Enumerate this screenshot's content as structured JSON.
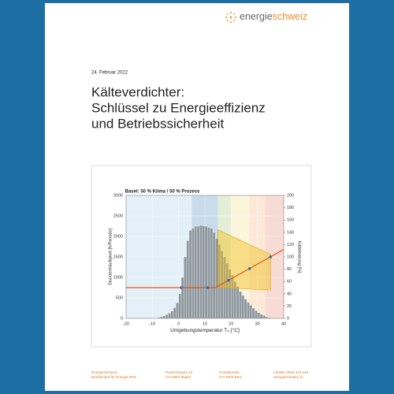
{
  "header": {
    "logo_a": "energie",
    "logo_b": "schweiz"
  },
  "document": {
    "date": "24. Februar 2022",
    "title_lines": [
      "Kälteverdichter:",
      "Schlüssel zu Energieeffizienz",
      "und Betriebssicherheit"
    ]
  },
  "chart_data": {
    "type": "histogram",
    "title": "Basel: 50 % Klima / 50 % Prozess",
    "xlabel": [
      "Umgebungstemperatur T",
      "A",
      " [°C]"
    ],
    "ylabel": "Stundenhäufigkeit [h/Periode]",
    "y2label": "Kälteleistung [%]",
    "xlim": [
      -20,
      40
    ],
    "xticks": [
      -20,
      -10,
      0,
      10,
      20,
      30,
      40
    ],
    "ylim": [
      0,
      3000
    ],
    "yticks": [
      0,
      500,
      1000,
      1500,
      2000,
      2500,
      3000
    ],
    "y2lim": [
      0,
      200
    ],
    "y2ticks": [
      0,
      20,
      40,
      60,
      80,
      100,
      120,
      140,
      160,
      180,
      200
    ],
    "grid": true,
    "bands": [
      {
        "from": -20,
        "to": 5,
        "color": "#e3f0f8"
      },
      {
        "from": 5,
        "to": 15,
        "color": "#c8dcec"
      },
      {
        "from": 15,
        "to": 20,
        "color": "#e2eed8"
      },
      {
        "from": 20,
        "to": 27,
        "color": "#fbf5dc"
      },
      {
        "from": 27,
        "to": 33,
        "color": "#fce8d6"
      },
      {
        "from": 33,
        "to": 40,
        "color": "#f8dbd4"
      }
    ],
    "bins": [
      -10,
      -9,
      -8,
      -7,
      -6,
      -5,
      -4,
      -3,
      -2,
      -1,
      0,
      1,
      2,
      3,
      4,
      5,
      6,
      7,
      8,
      9,
      10,
      11,
      12,
      13,
      14,
      15,
      16,
      17,
      18,
      19,
      20,
      21,
      22,
      23,
      24,
      25,
      26,
      27,
      28,
      29,
      30,
      31,
      32,
      33,
      34,
      35
    ],
    "counts": [
      5,
      10,
      20,
      40,
      60,
      90,
      130,
      180,
      260,
      380,
      600,
      1000,
      1500,
      1900,
      2150,
      2200,
      2250,
      2250,
      2270,
      2260,
      2250,
      2220,
      2200,
      2100,
      1950,
      1800,
      1650,
      1500,
      1350,
      1200,
      1050,
      900,
      780,
      660,
      560,
      470,
      390,
      320,
      250,
      190,
      140,
      100,
      70,
      40,
      20
    ],
    "bar_color": "#8e989e",
    "area": {
      "x": [
        15,
        35,
        35,
        15
      ],
      "y": [
        144,
        104,
        46,
        50
      ],
      "color": "#f2c21b",
      "axis": "y2"
    },
    "line": {
      "x": [
        -20,
        14,
        40
      ],
      "y": [
        50,
        50,
        112
      ],
      "color": "#e0561c",
      "axis": "y2"
    },
    "markers": {
      "x": [
        1,
        11,
        19,
        27,
        35
      ],
      "y": [
        50,
        50,
        62,
        81,
        100
      ],
      "color": "#2f6fb0",
      "axis": "y2"
    }
  },
  "footer": [
    [
      "EnergieSchweiz",
      "Bundesamt für Energie BFE"
    ],
    [
      "Pulverstrasse 13",
      "CH-3063 Ittigen"
    ],
    [
      "Postadresse",
      "CH-3003 Bern"
    ],
    [
      "Infoline 0848 444 444",
      "energieschweiz.ch"
    ]
  ]
}
